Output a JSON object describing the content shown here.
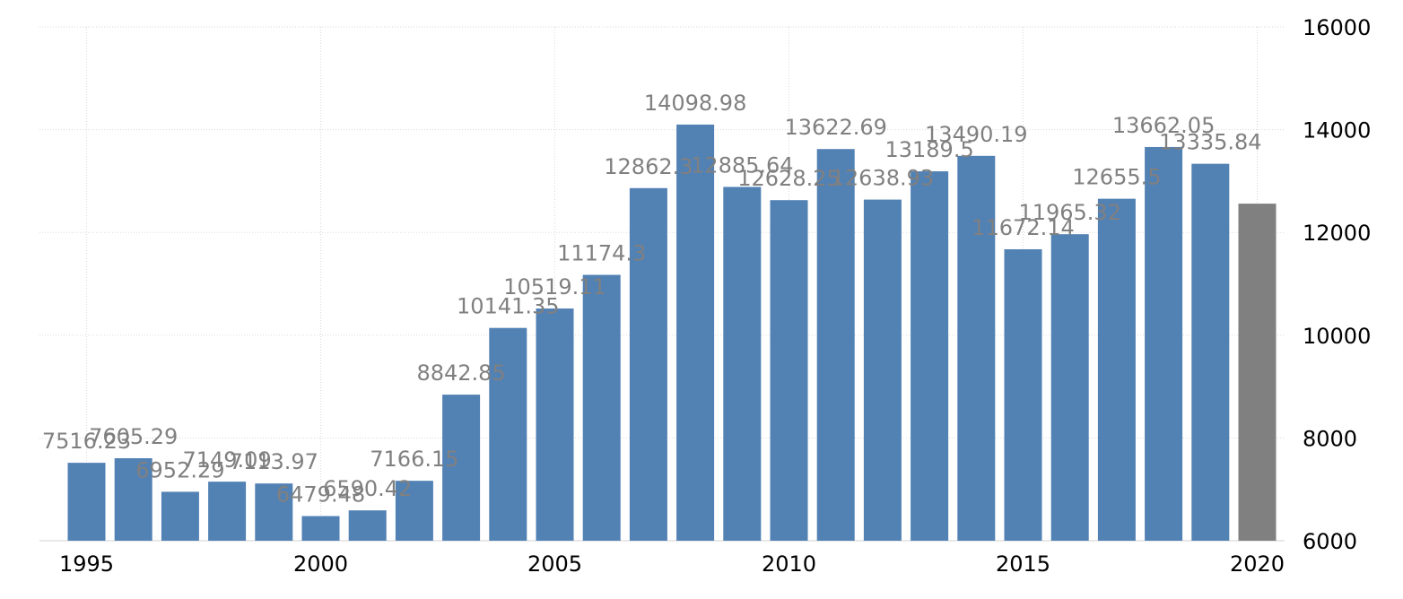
{
  "chart_data": {
    "type": "bar",
    "title": "",
    "xlabel": "",
    "ylabel": "",
    "ylim": [
      6000,
      16000
    ],
    "y_ticks": [
      "6000",
      "8000",
      "10000",
      "12000",
      "14000",
      "16000"
    ],
    "x_ticks": [
      "1995",
      "2000",
      "2005",
      "2010",
      "2015",
      "2020"
    ],
    "y_axis_position": "right",
    "grid": true,
    "categories": [
      1995,
      1996,
      1997,
      1998,
      1999,
      2000,
      2001,
      2002,
      2003,
      2004,
      2005,
      2006,
      2007,
      2008,
      2009,
      2010,
      2011,
      2012,
      2013,
      2014,
      2015,
      2016,
      2017,
      2018,
      2019,
      2020
    ],
    "values": [
      7516.23,
      7605.29,
      6952.29,
      7149.09,
      7113.97,
      6479.48,
      6590.42,
      7166.15,
      8842.85,
      10141.35,
      10519.11,
      11174.3,
      12862.3,
      14098.98,
      12885.64,
      12628.25,
      13622.69,
      12638.93,
      13189.5,
      13490.19,
      11672.14,
      11965.32,
      12655.5,
      13662.05,
      13335.84,
      12560
    ],
    "data_labels": [
      "7516.23",
      "7605.29",
      "6952.29",
      "7149.09",
      "7113.97",
      "6479.48",
      "6590.42",
      "7166.15",
      "8842.85",
      "10141.35",
      "10519.11",
      "11174.3",
      "12862.3",
      "14098.98",
      "12885.64",
      "12628.25",
      "13622.69",
      "12638.93",
      "13189.5",
      "13490.19",
      "11672.14",
      "11965.32",
      "12655.5",
      "13662.05",
      "13335.84",
      ""
    ],
    "colors": {
      "bar": "#5281b4",
      "forecast_bar": "#808080",
      "label": "#808080",
      "axis_text": "#000000",
      "grid": "#d9d9d9"
    },
    "forecast_index": 25
  }
}
